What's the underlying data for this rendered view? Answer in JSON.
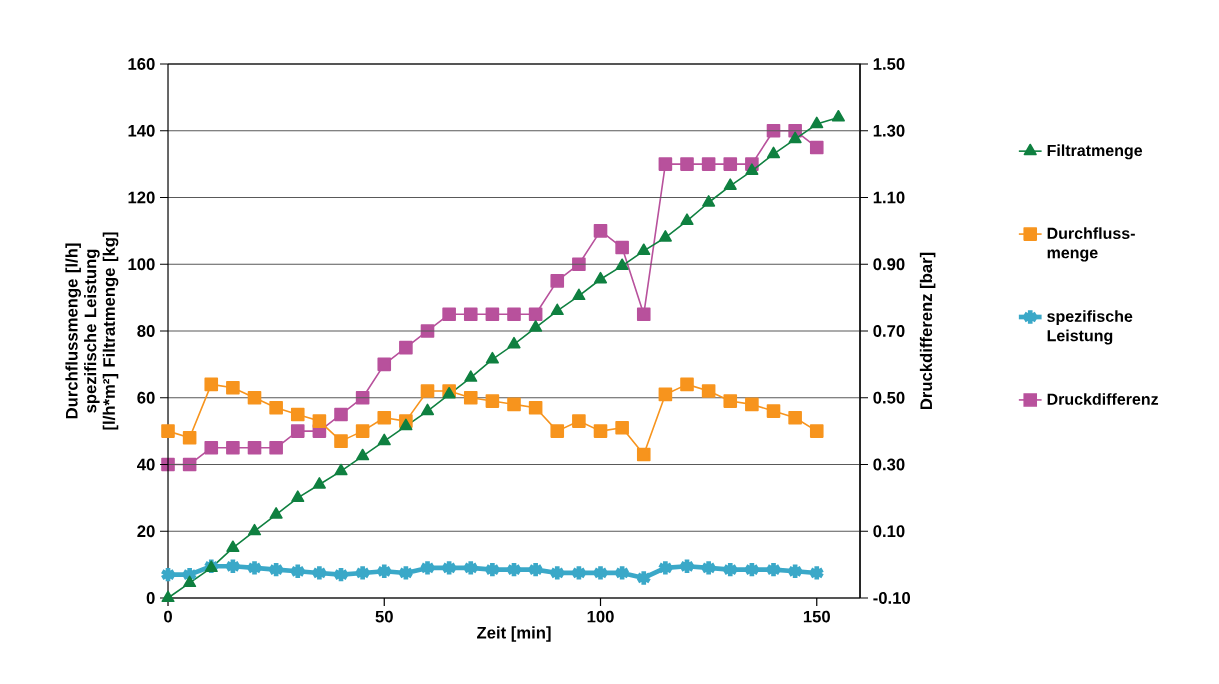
{
  "chart_data": {
    "type": "line",
    "xlabel": "Zeit [min]",
    "ylabel": "Durchflussmenge [l/h] spezifische Leistung [l/h*m²] Filtratmenge [kg]",
    "y2label": "Druckdifferenz  [bar]",
    "xlim": [
      0,
      160
    ],
    "xticks": [
      0,
      50,
      100,
      150
    ],
    "ylim": [
      0,
      160
    ],
    "yticks": [
      0,
      20,
      40,
      60,
      80,
      100,
      120,
      140,
      160
    ],
    "y2lim": [
      -0.1,
      1.5
    ],
    "y2ticks": [
      {
        "value": -0.1,
        "label": "-0.10"
      },
      {
        "value": 0.1,
        "label": "0.10"
      },
      {
        "value": 0.3,
        "label": "0.30"
      },
      {
        "value": 0.5,
        "label": "0.50"
      },
      {
        "value": 0.7,
        "label": "0.70"
      },
      {
        "value": 0.9,
        "label": "0.90"
      },
      {
        "value": 1.1,
        "label": "1.10"
      },
      {
        "value": 1.3,
        "label": "1.30"
      },
      {
        "value": 1.5,
        "label": "1.50"
      }
    ],
    "grid": "y",
    "legend": "right",
    "series": [
      {
        "name": "Filtratmenge",
        "color": "#0f8040",
        "marker": "triangle",
        "x": [
          0,
          5,
          10,
          15,
          20,
          25,
          30,
          35,
          40,
          45,
          50,
          55,
          60,
          65,
          70,
          75,
          80,
          85,
          90,
          95,
          100,
          105,
          110,
          115,
          120,
          125,
          130,
          135,
          140,
          145,
          150,
          155
        ],
        "values": [
          0,
          4.5,
          9,
          15,
          20,
          25,
          30,
          34,
          38,
          42.5,
          47,
          51.5,
          56,
          61,
          66,
          71.5,
          76,
          81,
          86,
          90.5,
          95.5,
          99.5,
          104,
          108,
          113,
          118.5,
          123.5,
          128,
          133,
          137.5,
          142,
          144
        ]
      },
      {
        "name": "Durchfluss-menge",
        "color": "#f7941d",
        "marker": "square",
        "x": [
          0,
          5,
          10,
          15,
          20,
          25,
          30,
          35,
          40,
          45,
          50,
          55,
          60,
          65,
          70,
          75,
          80,
          85,
          90,
          95,
          100,
          105,
          110,
          115,
          120,
          125,
          130,
          135,
          140,
          145,
          150
        ],
        "values": [
          50,
          48,
          64,
          63,
          60,
          57,
          55,
          53,
          47,
          50,
          54,
          53,
          62,
          62,
          60,
          59,
          58,
          57,
          50,
          53,
          50,
          51,
          43,
          61,
          64,
          62,
          59,
          58,
          56,
          54,
          50
        ]
      },
      {
        "name": "spezifische Leistung",
        "color": "#3aa8c8",
        "marker": "cross",
        "x": [
          0,
          5,
          10,
          15,
          20,
          25,
          30,
          35,
          40,
          45,
          50,
          55,
          60,
          65,
          70,
          75,
          80,
          85,
          90,
          95,
          100,
          105,
          110,
          115,
          120,
          125,
          130,
          135,
          140,
          145,
          150
        ],
        "values": [
          7,
          7,
          9.5,
          9.5,
          9,
          8.5,
          8,
          7.5,
          7,
          7.5,
          8,
          7.5,
          9,
          9,
          9,
          8.5,
          8.5,
          8.5,
          7.5,
          7.5,
          7.5,
          7.5,
          6,
          9,
          9.5,
          9,
          8.5,
          8.5,
          8.5,
          8,
          7.5
        ]
      },
      {
        "name": "Druckdifferenz",
        "color": "#b8519c",
        "marker": "square",
        "axis": "y2",
        "x": [
          0,
          5,
          10,
          15,
          20,
          25,
          30,
          35,
          40,
          45,
          50,
          55,
          60,
          65,
          70,
          75,
          80,
          85,
          90,
          95,
          100,
          105,
          110,
          115,
          120,
          125,
          130,
          135,
          140,
          145,
          150
        ],
        "values": [
          0.3,
          0.3,
          0.35,
          0.35,
          0.35,
          0.35,
          0.4,
          0.4,
          0.45,
          0.5,
          0.6,
          0.65,
          0.7,
          0.75,
          0.75,
          0.75,
          0.75,
          0.75,
          0.85,
          0.9,
          1.0,
          0.95,
          0.75,
          1.2,
          1.2,
          1.2,
          1.2,
          1.2,
          1.3,
          1.3,
          1.25
        ]
      }
    ]
  }
}
